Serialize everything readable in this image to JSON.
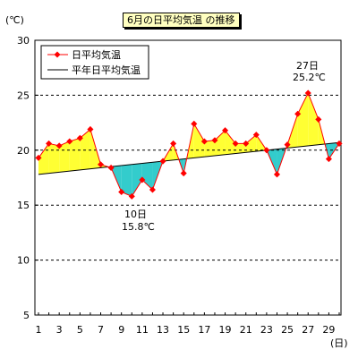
{
  "chart_data": {
    "type": "line",
    "title": "6月の日平均気温 の推移",
    "ylabel": "(℃)",
    "xlabel": "(日)",
    "ylim": [
      5,
      30
    ],
    "xlim": [
      1,
      30
    ],
    "yticks": [
      5,
      10,
      15,
      20,
      25,
      30
    ],
    "xticks": [
      1,
      3,
      5,
      7,
      9,
      11,
      13,
      15,
      17,
      19,
      21,
      23,
      25,
      27,
      29
    ],
    "grid": "horizontal dashed",
    "legend_position": "top-left",
    "fill_above_color": "#ffff33",
    "fill_below_color": "#33cccc",
    "series": [
      {
        "name": "日平均気温",
        "color": "#ff0000",
        "x": [
          1,
          2,
          3,
          4,
          5,
          6,
          7,
          8,
          9,
          10,
          11,
          12,
          13,
          14,
          15,
          16,
          17,
          18,
          19,
          20,
          21,
          22,
          23,
          24,
          25,
          26,
          27,
          28,
          29,
          30
        ],
        "values": [
          19.3,
          20.6,
          20.4,
          20.8,
          21.1,
          21.9,
          18.7,
          18.4,
          16.2,
          15.8,
          17.3,
          16.4,
          19.0,
          20.6,
          17.9,
          22.4,
          20.8,
          20.9,
          21.8,
          20.6,
          20.6,
          21.4,
          20.0,
          17.8,
          20.5,
          23.3,
          25.2,
          22.8,
          19.2,
          20.6
        ]
      },
      {
        "name": "平年日平均気温",
        "color": "#000000",
        "x": [
          1,
          30
        ],
        "values": [
          17.8,
          20.7
        ]
      }
    ],
    "annotations": [
      {
        "line1": "27日",
        "line2": "25.2℃"
      },
      {
        "line1": "10日",
        "line2": "15.8℃"
      }
    ]
  }
}
